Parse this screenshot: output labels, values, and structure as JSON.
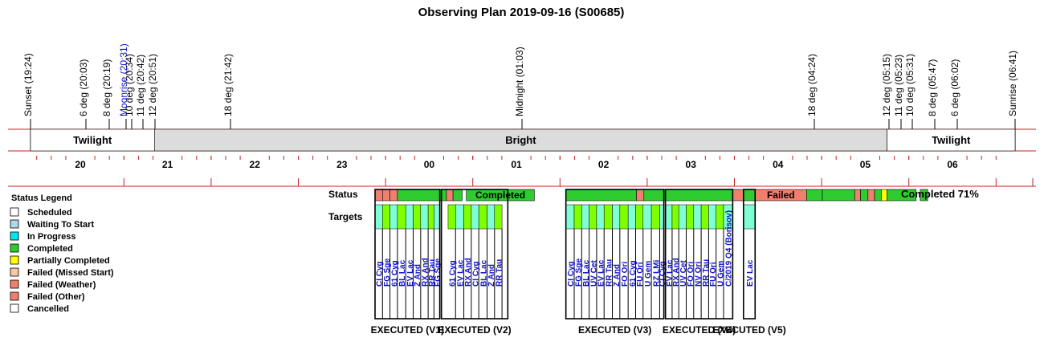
{
  "chart_data": {
    "type": "timeline",
    "title": "Observing Plan 2019-09-16 (S00685)",
    "time_range": [
      "19:00",
      "06:55"
    ],
    "events": [
      {
        "label": "Sunset (19:24)",
        "time": "19:24",
        "color": "#000000"
      },
      {
        "label": "6 deg (20:03)",
        "time": "20:03",
        "color": "#000000"
      },
      {
        "label": "8 deg (20:19)",
        "time": "20:19",
        "color": "#000000"
      },
      {
        "label": "Moonrise (20:31)",
        "time": "20:31",
        "color": "#1010d0"
      },
      {
        "label": "10 deg (20:34)",
        "time": "20:34",
        "color": "#000000"
      },
      {
        "label": "11 deg (20:42)",
        "time": "20:42",
        "color": "#000000"
      },
      {
        "label": "12 deg (20:51)",
        "time": "20:51",
        "color": "#000000"
      },
      {
        "label": "18 deg (21:42)",
        "time": "21:42",
        "color": "#000000"
      },
      {
        "label": "Midnight (01:03)",
        "time": "01:03",
        "color": "#000000"
      },
      {
        "label": "18 deg (04:24)",
        "time": "04:24",
        "color": "#000000"
      },
      {
        "label": "12 deg (05:15)",
        "time": "05:15",
        "color": "#000000"
      },
      {
        "label": "11 deg (05:23)",
        "time": "05:23",
        "color": "#000000"
      },
      {
        "label": "10 deg (05:31)",
        "time": "05:31",
        "color": "#000000"
      },
      {
        "label": "8 deg (05:47)",
        "time": "05:47",
        "color": "#000000"
      },
      {
        "label": "6 deg (06:02)",
        "time": "06:02",
        "color": "#000000"
      },
      {
        "label": "Sunrise (06:41)",
        "time": "06:41",
        "color": "#000000"
      }
    ],
    "bands": [
      {
        "label": "Twilight",
        "start": "19:24",
        "end": "20:51",
        "color": "#ffffff"
      },
      {
        "label": "Bright",
        "start": "20:51",
        "end": "05:15",
        "color": "#dcdcdc"
      },
      {
        "label": "Twilight",
        "start": "05:15",
        "end": "06:41",
        "color": "#ffffff"
      }
    ],
    "hour_labels": [
      "20",
      "21",
      "22",
      "23",
      "00",
      "01",
      "02",
      "03",
      "04",
      "05",
      "06"
    ],
    "row_labels": {
      "status": "Status",
      "targets": "Targets"
    },
    "status_segments": [
      {
        "start": "00:40",
        "end": "00:49",
        "status": "failed_other"
      },
      {
        "start": "00:49",
        "end": "00:58",
        "status": "failed_other"
      },
      {
        "start": "00:58",
        "end": "01:07",
        "status": "failed_other"
      },
      {
        "start": "01:07",
        "end": "02:06",
        "status": "completed"
      },
      {
        "start": "02:06",
        "end": "02:14",
        "status": "failed_other"
      },
      {
        "start": "02:14",
        "end": "02:25",
        "status": "completed"
      },
      {
        "start": "02:30",
        "end": "03:52",
        "status": "completed",
        "text": "Completed"
      },
      {
        "start": "04:30",
        "end": "05:55",
        "status": "completed"
      },
      {
        "start": "05:55",
        "end": "06:04",
        "status": "failed_other"
      },
      {
        "start": "06:04",
        "end": "07:51",
        "status": "completed"
      },
      {
        "start": "07:51",
        "end": "08:04",
        "status": "failed_other"
      },
      {
        "start": "08:04",
        "end": "08:18",
        "status": "completed"
      },
      {
        "start": "08:18",
        "end": "09:20",
        "status": "failed_other",
        "text": "Failed"
      },
      {
        "start": "09:20",
        "end": "09:39",
        "status": "completed"
      },
      {
        "start": "09:39",
        "end": "10:18",
        "status": "completed"
      },
      {
        "start": "10:18",
        "end": "10:25",
        "status": "failed_other"
      },
      {
        "start": "10:25",
        "end": "10:34",
        "status": "completed"
      },
      {
        "start": "10:34",
        "end": "10:42",
        "status": "failed_other"
      },
      {
        "start": "10:42",
        "end": "10:50",
        "status": "completed"
      },
      {
        "start": "10:50",
        "end": "10:57",
        "status": "partially_completed"
      },
      {
        "start": "10:57",
        "end": "11:32",
        "status": "completed"
      },
      {
        "start": "11:37",
        "end": "11:46",
        "status": "completed"
      }
    ],
    "completed_summary": "Completed 71%",
    "targets": [
      {
        "name": "CI Cyg",
        "start": "00:40",
        "end": "00:49",
        "status": "in_progress"
      },
      {
        "name": "FG Sge",
        "start": "00:49",
        "end": "00:58",
        "status": "completed"
      },
      {
        "name": "61 Cyg",
        "start": "00:58",
        "end": "01:07",
        "status": "in_progress"
      },
      {
        "name": "BL Lac",
        "start": "01:07",
        "end": "01:17",
        "status": "completed"
      },
      {
        "name": "EV Lac",
        "start": "01:17",
        "end": "01:26",
        "status": "in_progress"
      },
      {
        "name": "Z And",
        "start": "01:26",
        "end": "01:35",
        "status": "completed"
      },
      {
        "name": "RX And",
        "start": "01:35",
        "end": "01:44",
        "status": "in_progress"
      },
      {
        "name": "RR Tau",
        "start": "01:44",
        "end": "01:51",
        "status": "completed"
      },
      {
        "name": "FG Sge",
        "start": "01:51",
        "end": "01:58",
        "status": "in_progress"
      },
      {
        "name": "61 Cyg",
        "start": "02:08",
        "end": "02:17",
        "status": "completed"
      },
      {
        "name": "EV Lac",
        "start": "02:17",
        "end": "02:27",
        "status": "in_progress"
      },
      {
        "name": "RX And",
        "start": "02:27",
        "end": "02:36",
        "status": "completed"
      },
      {
        "name": "CI Cyg",
        "start": "02:36",
        "end": "02:45",
        "status": "in_progress"
      },
      {
        "name": "BL Lac",
        "start": "02:45",
        "end": "02:55",
        "status": "completed"
      },
      {
        "name": "Z And",
        "start": "02:55",
        "end": "03:04",
        "status": "in_progress"
      },
      {
        "name": "RR Tau",
        "start": "03:04",
        "end": "03:13",
        "status": "completed"
      },
      {
        "name": "CI Cyg",
        "start": "04:30",
        "end": "04:40",
        "status": "in_progress"
      },
      {
        "name": "FG Sge",
        "start": "04:40",
        "end": "04:49",
        "status": "completed"
      },
      {
        "name": "BL Lac",
        "start": "04:49",
        "end": "04:58",
        "status": "in_progress"
      },
      {
        "name": "UV Cet",
        "start": "04:58",
        "end": "05:07",
        "status": "completed"
      },
      {
        "name": "EV Lac",
        "start": "05:07",
        "end": "05:16",
        "status": "in_progress"
      },
      {
        "name": "RR Tau",
        "start": "05:16",
        "end": "05:26",
        "status": "completed"
      },
      {
        "name": "Z And",
        "start": "05:26",
        "end": "05:35",
        "status": "in_progress"
      },
      {
        "name": "FO Ori",
        "start": "05:35",
        "end": "05:45",
        "status": "completed"
      },
      {
        "name": "61 Cyg",
        "start": "05:45",
        "end": "05:54",
        "status": "in_progress"
      },
      {
        "name": "FU Ori",
        "start": "05:54",
        "end": "06:03",
        "status": "completed"
      },
      {
        "name": "U Gem",
        "start": "06:03",
        "end": "06:13",
        "status": "in_progress"
      },
      {
        "name": "RZ LMi",
        "start": "06:13",
        "end": "06:23",
        "status": "completed"
      },
      {
        "name": "CI Cyg",
        "start": "06:23",
        "end": "06:28",
        "status": "in_progress"
      },
      {
        "name": "EV Lac",
        "start": "06:30",
        "end": "06:38",
        "status": "in_progress"
      },
      {
        "name": "RX And",
        "start": "06:38",
        "end": "06:46",
        "status": "completed"
      },
      {
        "name": "UV Cet",
        "start": "06:46",
        "end": "06:55",
        "status": "in_progress"
      },
      {
        "name": "FO Ori",
        "start": "06:55",
        "end": "07:04",
        "status": "completed"
      },
      {
        "name": "NV Ori",
        "start": "07:04",
        "end": "07:13",
        "status": "in_progress"
      },
      {
        "name": "RR Tau",
        "start": "07:13",
        "end": "07:22",
        "status": "completed"
      },
      {
        "name": "FU Ori",
        "start": "07:22",
        "end": "07:31",
        "status": "in_progress"
      },
      {
        "name": "U Gem",
        "start": "07:31",
        "end": "07:40",
        "status": "completed"
      },
      {
        "name": "C/2019 Q4 (Borisov)",
        "start": "07:40",
        "end": "07:51",
        "status": "in_progress"
      },
      {
        "name": "EV Lac",
        "start": "08:04",
        "end": "08:18",
        "status": "in_progress"
      }
    ],
    "visits": [
      {
        "label": "EXECUTED (V1)",
        "start": "00:40",
        "end": "01:58"
      },
      {
        "label": "EXECUTED (V2)",
        "start": "02:00",
        "end": "03:20"
      },
      {
        "label": "EXECUTED (V3)",
        "start": "04:30",
        "end": "06:28"
      },
      {
        "label": "EXECUTED (V4)",
        "start": "06:30",
        "end": "07:51"
      },
      {
        "label": "EXECUTED (V5)",
        "start": "08:04",
        "end": "08:18"
      }
    ],
    "legend": {
      "title": "Status Legend",
      "items": [
        {
          "label": "Scheduled",
          "color": "#ffffff"
        },
        {
          "label": "Waiting To Start",
          "color": "#add8e6"
        },
        {
          "label": "In Progress",
          "color": "#00e5ee"
        },
        {
          "label": "Completed",
          "color": "#2ecc2e"
        },
        {
          "label": "Partially Completed",
          "color": "#ffff00"
        },
        {
          "label": "Failed (Missed Start)",
          "color": "#f5c9a3"
        },
        {
          "label": "Failed (Weather)",
          "color": "#f07f6e"
        },
        {
          "label": "Failed (Other)",
          "color": "#f07f6e"
        },
        {
          "label": "Cancelled",
          "color": "#ffffff"
        }
      ]
    },
    "colors": {
      "completed": "#2ecc2e",
      "failed_other": "#f07f6e",
      "partially_completed": "#ffff00",
      "in_progress": "#7fffd4",
      "target_completed": "#7fff00",
      "target_text": "#1010d0",
      "axis_red": "#cc2020",
      "bright_band": "#dcdcdc"
    }
  }
}
